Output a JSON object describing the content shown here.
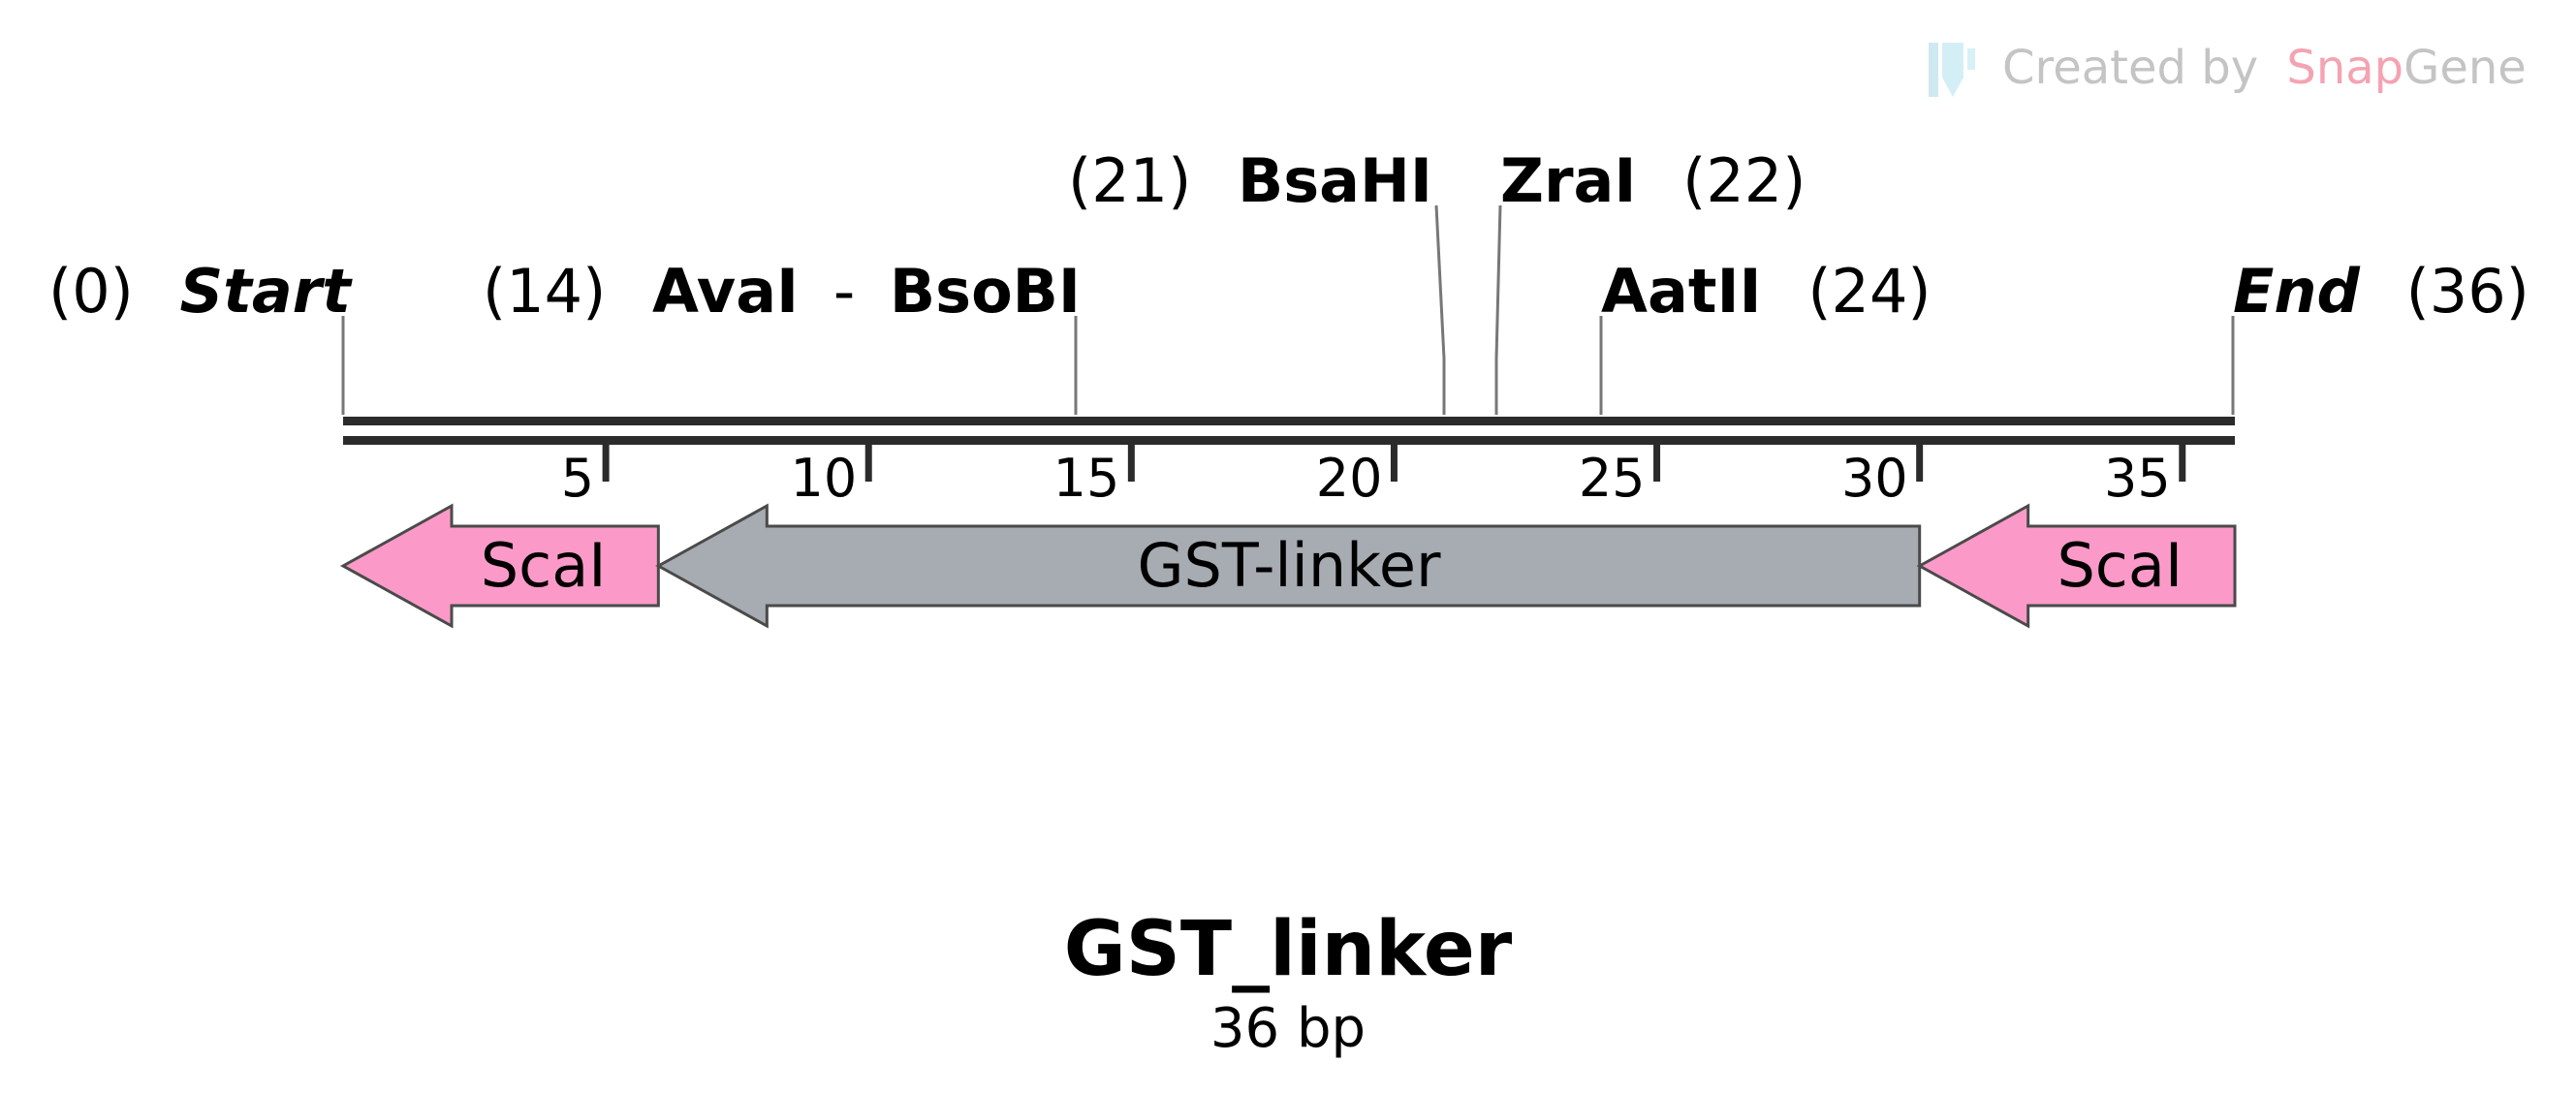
{
  "branding": {
    "created_by": "Created by",
    "snap": "Snap",
    "gene": "Gene",
    "snap_color": "#f4a3b3",
    "gene_color": "#c4c4c4",
    "icon": "snapgene-logo-icon"
  },
  "sequence": {
    "name": "GST_linker",
    "length_label": "36 bp",
    "length": 36
  },
  "colors": {
    "backbone": "#2b2b2b",
    "site_line": "#777777",
    "feature_gst": "#a7abb2",
    "feature_scai": "#fb9ac8",
    "feature_stroke": "#4a4a4a"
  },
  "sites": [
    {
      "name": "Start",
      "position": 0,
      "position_label": "(0)",
      "style": "italic"
    },
    {
      "name": "AvaI",
      "name2": "BsoBI",
      "separator": "-",
      "position": 14,
      "position_label": "(14)",
      "style": "bold"
    },
    {
      "name": "BsaHI",
      "position": 21,
      "position_label": "(21)",
      "style": "bold"
    },
    {
      "name": "ZraI",
      "position": 22,
      "position_label": "(22)",
      "style": "bold"
    },
    {
      "name": "AatII",
      "position": 24,
      "position_label": "(24)",
      "style": "bold"
    },
    {
      "name": "End",
      "position": 36,
      "position_label": "(36)",
      "style": "italic"
    }
  ],
  "ruler": {
    "ticks": [
      5,
      10,
      15,
      20,
      25,
      30,
      35
    ]
  },
  "features": [
    {
      "name": "ScaI",
      "start": 0,
      "end": 6,
      "direction": "reverse",
      "type": "scai"
    },
    {
      "name": "GST-linker",
      "start": 6,
      "end": 30,
      "direction": "reverse",
      "type": "gst"
    },
    {
      "name": "ScaI",
      "start": 30,
      "end": 36,
      "direction": "reverse",
      "type": "scai"
    }
  ]
}
